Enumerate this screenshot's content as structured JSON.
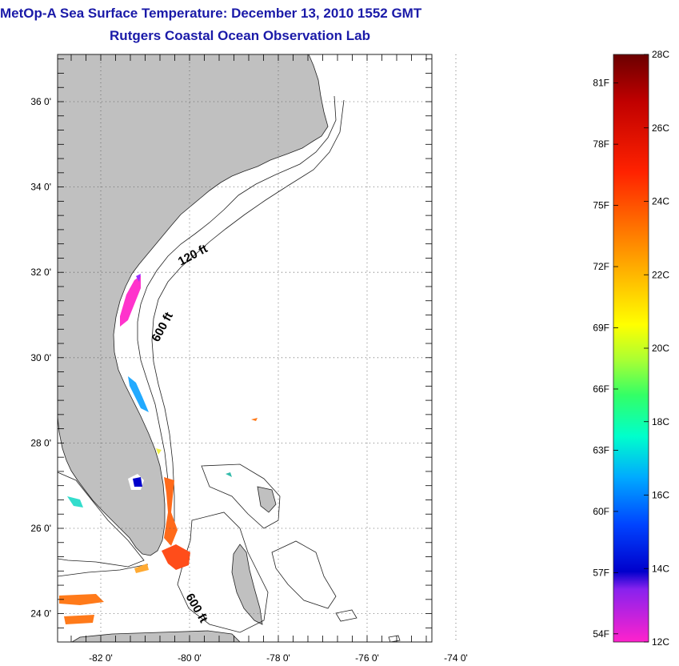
{
  "header": {
    "title": "MetOp-A Sea Surface Temperature:  December 13, 2010 1552 GMT",
    "subtitle": "Rutgers Coastal Ocean Observation Lab"
  },
  "map": {
    "lat_ticks": [
      "36 0'",
      "34 0'",
      "32 0'",
      "30 0'",
      "28 0'",
      "26 0'",
      "24 0'"
    ],
    "lon_ticks": [
      "-82 0'",
      "-80 0'",
      "-78 0'",
      "-76 0'",
      "-74 0'"
    ],
    "contour_labels": [
      "120 ft",
      "600 ft",
      "600 ft"
    ],
    "colors": {
      "land": "#c0c0c0",
      "ocean": "#ffffff",
      "grid": "#555555"
    }
  },
  "colorbar": {
    "fahrenheit": [
      "81F",
      "78F",
      "75F",
      "72F",
      "69F",
      "66F",
      "63F",
      "60F",
      "57F",
      "54F"
    ],
    "celsius": [
      "28C",
      "26C",
      "24C",
      "22C",
      "20C",
      "18C",
      "16C",
      "14C",
      "12C"
    ]
  }
}
